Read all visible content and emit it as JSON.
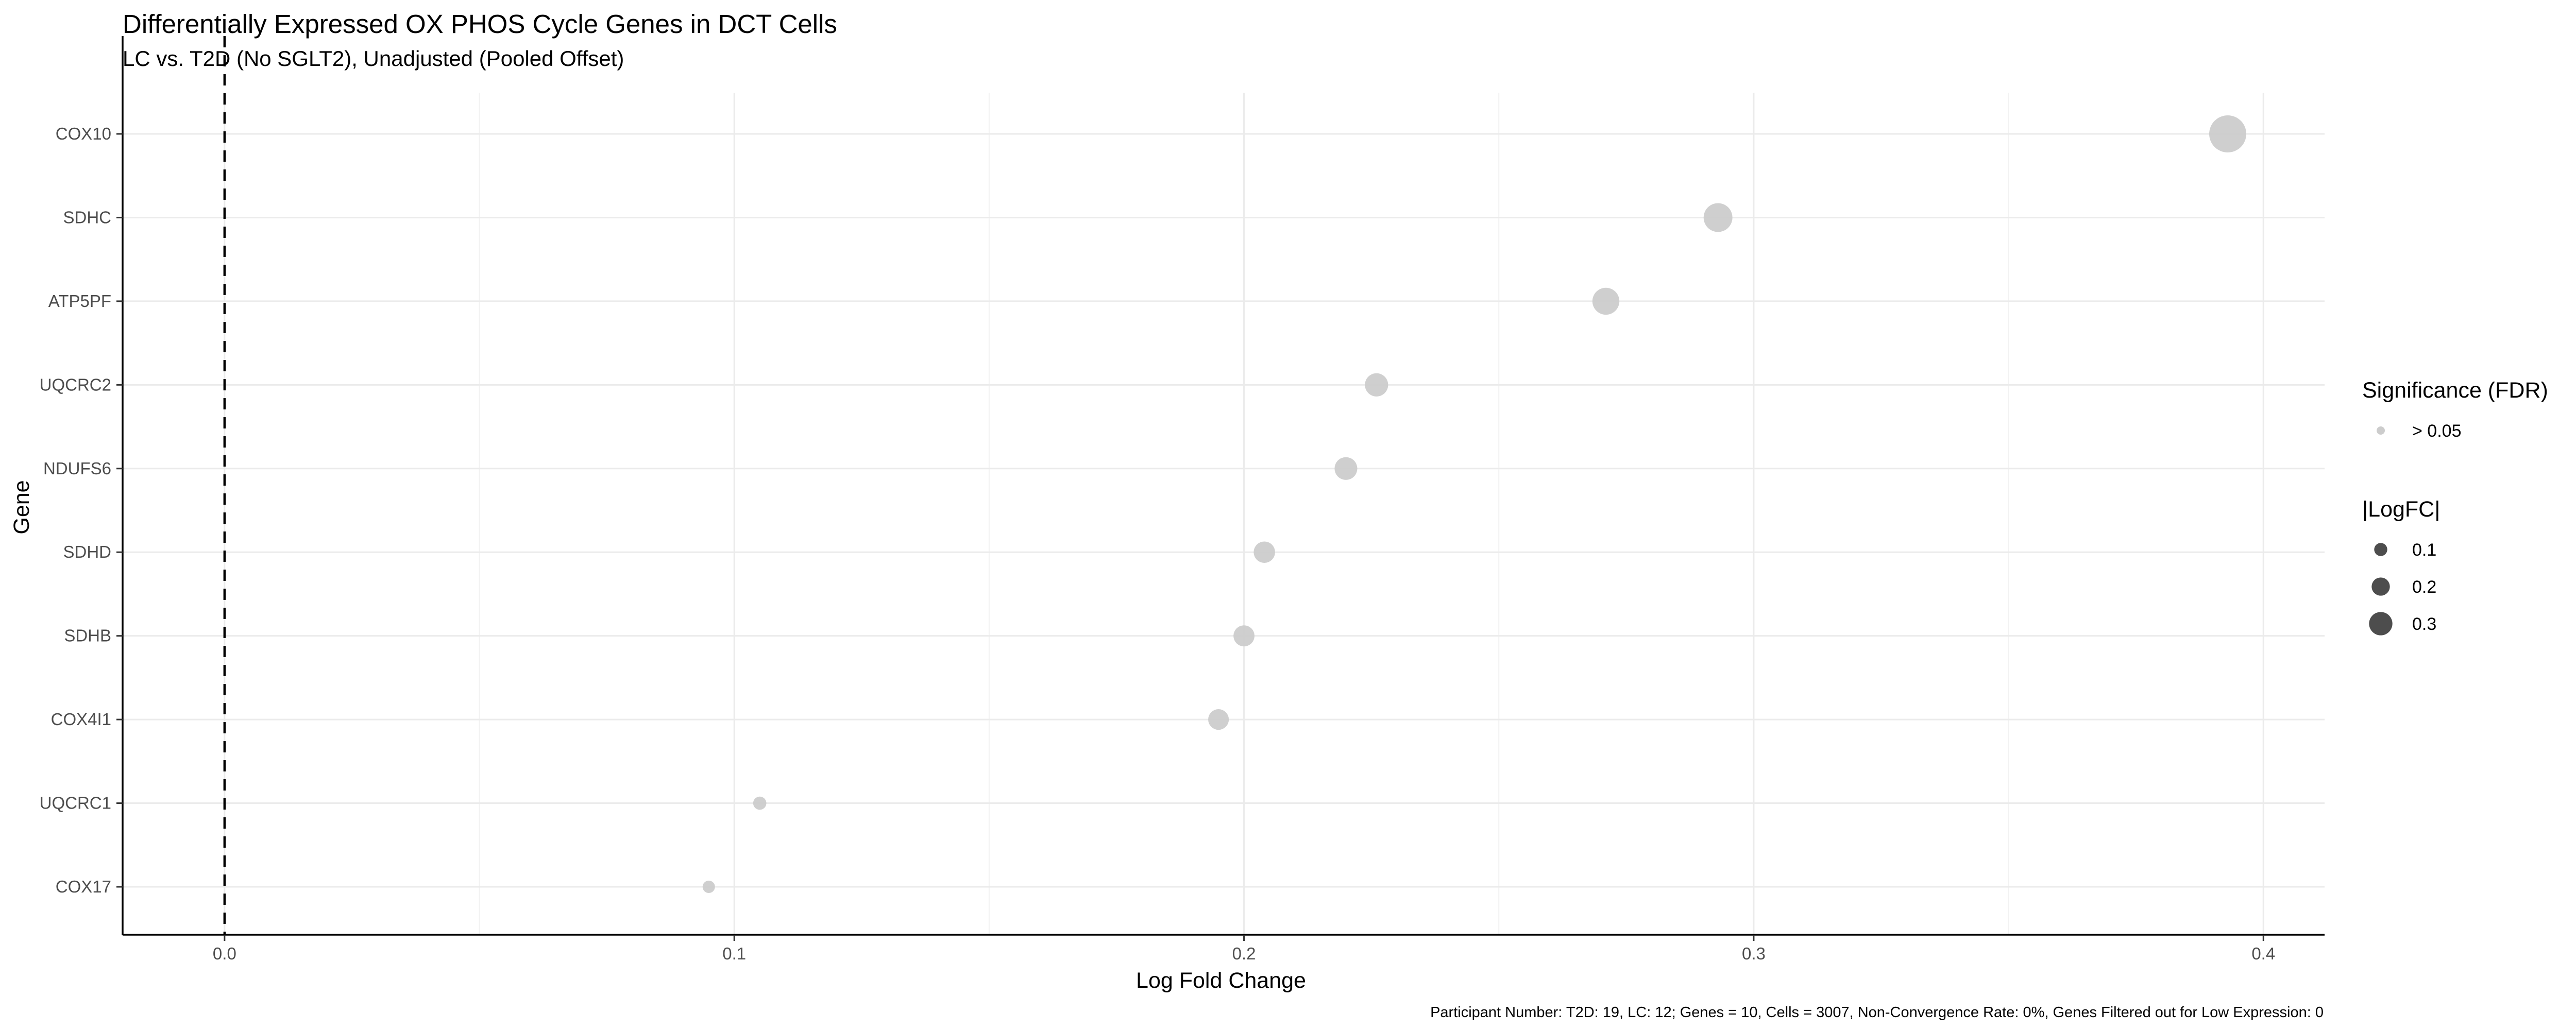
{
  "chart_data": {
    "type": "scatter",
    "title": "Differentially Expressed OX PHOS Cycle Genes in DCT Cells",
    "subtitle": "LC vs. T2D (No SGLT2), Unadjusted (Pooled Offset)",
    "xlabel": "Log Fold Change",
    "ylabel": "Gene",
    "xlim": [
      -0.02,
      0.412
    ],
    "x_ticks": [
      0.0,
      0.1,
      0.2,
      0.3,
      0.4
    ],
    "x_tick_labels": [
      "0.0",
      "0.1",
      "0.2",
      "0.3",
      "0.4"
    ],
    "reference_line": {
      "x": 0,
      "style": "dashed"
    },
    "categories": [
      "COX10",
      "SDHC",
      "ATP5PF",
      "UQCRC2",
      "NDUFS6",
      "SDHD",
      "SDHB",
      "COX4I1",
      "UQCRC1",
      "COX17"
    ],
    "values": [
      0.393,
      0.293,
      0.271,
      0.226,
      0.22,
      0.204,
      0.2,
      0.195,
      0.105,
      0.095
    ],
    "significance": [
      "> 0.05",
      "> 0.05",
      "> 0.05",
      "> 0.05",
      "> 0.05",
      "> 0.05",
      "> 0.05",
      "> 0.05",
      "> 0.05",
      "> 0.05"
    ],
    "point_color": "#cccccc",
    "grid": true,
    "legends": [
      {
        "title": "Significance (FDR)",
        "items": [
          {
            "label": "> 0.05",
            "color": "#cccccc"
          }
        ]
      },
      {
        "title": "|LogFC|",
        "items": [
          {
            "label": "0.1",
            "value": 0.1
          },
          {
            "label": "0.2",
            "value": 0.2
          },
          {
            "label": "0.3",
            "value": 0.3
          }
        ],
        "color": "#4d4d4d"
      }
    ],
    "legend_position": "right",
    "caption": "Participant Number: T2D: 19, LC: 12; Genes = 10, Cells = 3007, Non-Convergence Rate: 0%, Genes Filtered out for Low Expression: 0"
  }
}
